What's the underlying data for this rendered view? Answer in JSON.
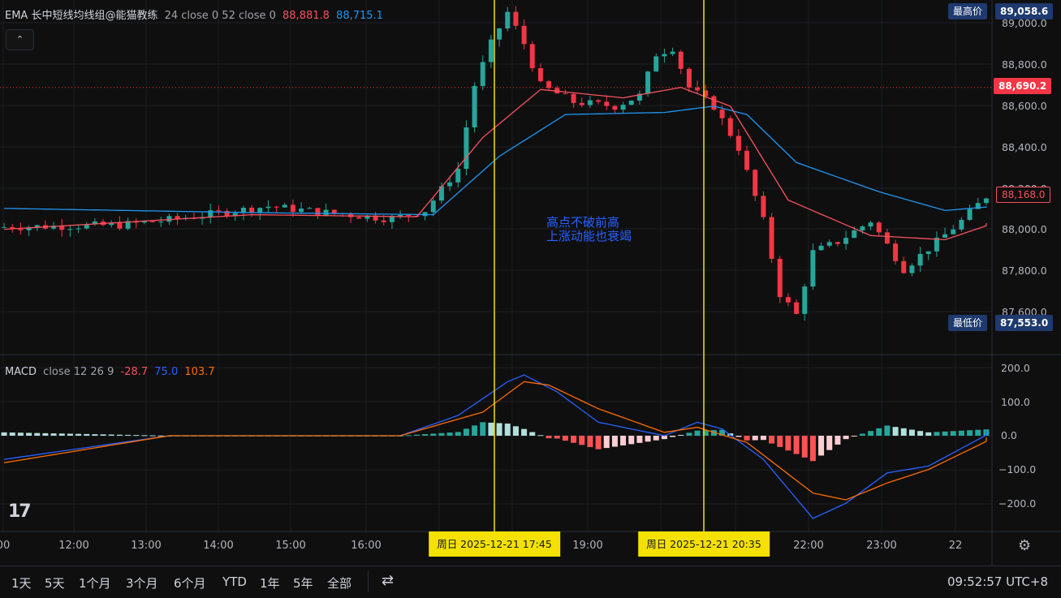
{
  "indicator": {
    "ema_label": "EMA 长中短线均线组@能猫教练",
    "ema_params": "24 close 0 52 close 0",
    "ema_value_1": "88,881.8",
    "ema_value_2": "88,715.1",
    "macd_label": "MACD",
    "macd_params": "close 12 26 9",
    "macd_hist": "-28.7",
    "macd_line": "75.0",
    "macd_signal": "103.7"
  },
  "collapse_label": "⌃",
  "price_axis": [
    "89,000.0",
    "88,800.0",
    "88,600.0",
    "88,400.0",
    "88,200.0",
    "88,000.0",
    "87,800.0",
    "87,600.0"
  ],
  "macd_axis": [
    "200.0",
    "100.0",
    "0.0",
    "−100.0",
    "−200.0"
  ],
  "badges": {
    "high_label": "最高价",
    "high_value": "89,058.6",
    "current_value": "88,690.2",
    "ema_value": "88,168.0",
    "low_label": "最低价",
    "low_value": "87,553.0"
  },
  "annotation": {
    "line1": "高点不破前高",
    "line2": "上涨动能也衰竭"
  },
  "time_axis": [
    "00",
    "12:00",
    "13:00",
    "14:00",
    "15:00",
    "16:00",
    "19:00",
    "22:00",
    "23:00",
    "22"
  ],
  "time_tags": [
    "周日 2025-12-21    17:45",
    "周日 2025-12-21    20:35"
  ],
  "ranges": [
    "1天",
    "5天",
    "1个月",
    "3个月",
    "6个月",
    "YTD",
    "1年",
    "5年",
    "全部"
  ],
  "clock": "09:52:57 UTC+8",
  "logo": "17",
  "gear_icon": "⚙",
  "calendar_icon": "⇄",
  "colors": {
    "up": "#26a69a",
    "down": "#f23645",
    "ema_fast": "#f7525f",
    "ema_slow": "#2196f3",
    "macd": "#2962ff",
    "signal": "#ff6d00",
    "vline": "#f5e100"
  },
  "chart_data": {
    "type": "candlestick",
    "time_range": [
      "11:20",
      "00:40"
    ],
    "price_range": [
      87553.0,
      89058.6
    ],
    "price_path": [
      [
        0,
        88020
      ],
      [
        15,
        88030
      ],
      [
        20,
        88050
      ],
      [
        33,
        88120
      ],
      [
        40,
        88090
      ],
      [
        48,
        88060
      ],
      [
        52,
        88100
      ],
      [
        56,
        88300
      ],
      [
        58,
        88700
      ],
      [
        60,
        88900
      ],
      [
        62,
        89050
      ],
      [
        64,
        88900
      ],
      [
        66,
        88700
      ],
      [
        70,
        88620
      ],
      [
        75,
        88600
      ],
      [
        78,
        88650
      ],
      [
        80,
        88850
      ],
      [
        82,
        88880
      ],
      [
        84,
        88690
      ],
      [
        87,
        88600
      ],
      [
        90,
        88400
      ],
      [
        93,
        88050
      ],
      [
        95,
        87700
      ],
      [
        97,
        87600
      ],
      [
        99,
        87900
      ],
      [
        102,
        87950
      ],
      [
        106,
        88050
      ],
      [
        110,
        87820
      ],
      [
        114,
        87950
      ],
      [
        117,
        88050
      ],
      [
        120,
        88168
      ]
    ],
    "ema_fast_path": [
      [
        0,
        88010
      ],
      [
        30,
        88080
      ],
      [
        50,
        88070
      ],
      [
        58,
        88450
      ],
      [
        65,
        88680
      ],
      [
        75,
        88640
      ],
      [
        82,
        88690
      ],
      [
        88,
        88600
      ],
      [
        95,
        88150
      ],
      [
        105,
        87980
      ],
      [
        114,
        87960
      ],
      [
        120,
        88040
      ]
    ],
    "ema_slow_path": [
      [
        0,
        88110
      ],
      [
        30,
        88090
      ],
      [
        52,
        88080
      ],
      [
        60,
        88360
      ],
      [
        68,
        88560
      ],
      [
        80,
        88570
      ],
      [
        86,
        88600
      ],
      [
        90,
        88560
      ],
      [
        96,
        88330
      ],
      [
        106,
        88190
      ],
      [
        114,
        88100
      ],
      [
        120,
        88120
      ]
    ],
    "macd_range": [
      -250,
      200
    ],
    "macd_line_path": [
      [
        0,
        -70
      ],
      [
        20,
        0
      ],
      [
        48,
        0
      ],
      [
        55,
        60
      ],
      [
        61,
        160
      ],
      [
        63,
        180
      ],
      [
        67,
        130
      ],
      [
        72,
        40
      ],
      [
        80,
        0
      ],
      [
        84,
        40
      ],
      [
        87,
        20
      ],
      [
        92,
        -70
      ],
      [
        98,
        -245
      ],
      [
        102,
        -200
      ],
      [
        107,
        -110
      ],
      [
        112,
        -90
      ],
      [
        120,
        15
      ]
    ],
    "macd_signal_path": [
      [
        0,
        -80
      ],
      [
        20,
        0
      ],
      [
        48,
        0
      ],
      [
        58,
        70
      ],
      [
        63,
        160
      ],
      [
        66,
        150
      ],
      [
        72,
        80
      ],
      [
        80,
        10
      ],
      [
        84,
        25
      ],
      [
        90,
        -20
      ],
      [
        98,
        -170
      ],
      [
        102,
        -190
      ],
      [
        107,
        -140
      ],
      [
        112,
        -100
      ],
      [
        120,
        -5
      ]
    ]
  }
}
